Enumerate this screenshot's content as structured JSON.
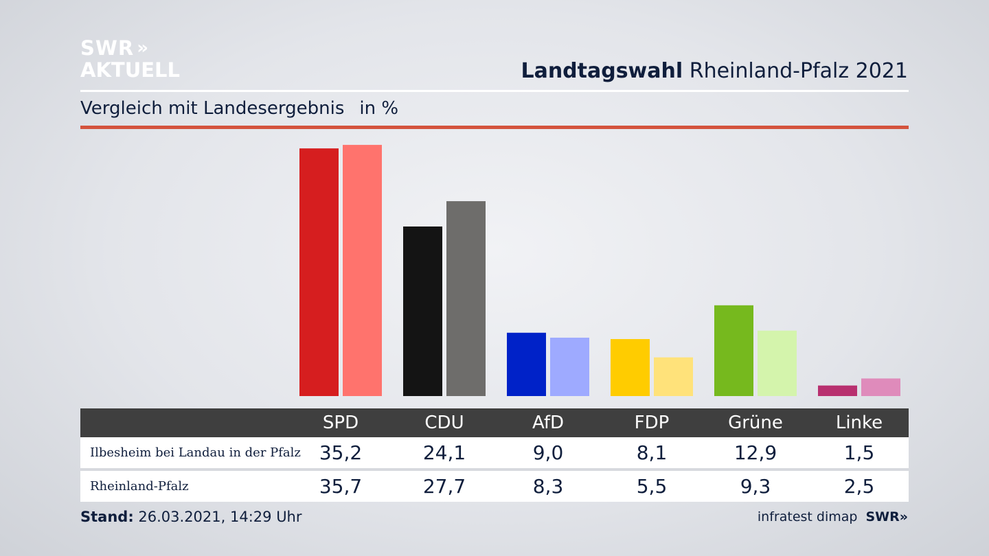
{
  "logo": {
    "line1": "SWR",
    "chevrons": "»",
    "line2": "AKTUELL"
  },
  "header": {
    "title_bold": "Landtagswahl",
    "title_rest": "Rheinland-Pfalz 2021",
    "subtitle": "Vergleich mit Landesergebnis",
    "unit": "in %"
  },
  "footer": {
    "stand_label": "Stand:",
    "stand_value": "26.03.2021, 14:29 Uhr",
    "source": "infratest dimap",
    "brand": "SWR»"
  },
  "colors": {
    "title_navy": "#0f1e3c",
    "accent_red_rule": "#d4533d",
    "table_header_bg": "#3f3f3f"
  },
  "chart_data": {
    "type": "bar",
    "title": "Landtagswahl Rheinland-Pfalz 2021",
    "subtitle": "Vergleich mit Landesergebnis",
    "ylabel": "in %",
    "ylim": [
      0,
      36
    ],
    "categories": [
      "SPD",
      "CDU",
      "AfD",
      "FDP",
      "Grüne",
      "Linke"
    ],
    "series": [
      {
        "name": "Ilbesheim bei Landau in der Pfalz",
        "values": [
          35.2,
          24.1,
          9.0,
          8.1,
          12.9,
          1.5
        ],
        "labels": [
          "35,2",
          "24,1",
          "9,0",
          "8,1",
          "12,9",
          "1,5"
        ],
        "colors": [
          "#d61e1f",
          "#141414",
          "#0022c8",
          "#ffcc00",
          "#76b91e",
          "#b8306f"
        ]
      },
      {
        "name": "Rheinland-Pfalz",
        "values": [
          35.7,
          27.7,
          8.3,
          5.5,
          9.3,
          2.5
        ],
        "labels": [
          "35,7",
          "27,7",
          "8,3",
          "5,5",
          "9,3",
          "2,5"
        ],
        "colors": [
          "#ff736d",
          "#6e6d6b",
          "#9eaaff",
          "#ffe27a",
          "#d4f4ac",
          "#df8bbb"
        ]
      }
    ],
    "grid": false,
    "legend": "table-below"
  }
}
